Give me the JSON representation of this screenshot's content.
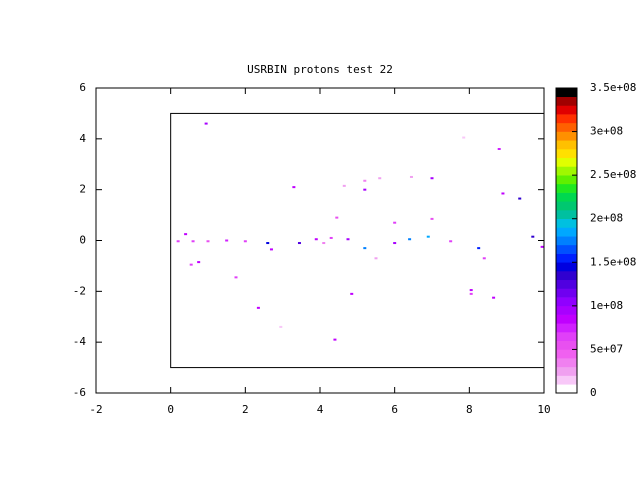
{
  "chart_data": {
    "type": "heatmap",
    "title": "USRBIN protons test 22",
    "xlim": [
      -2,
      10
    ],
    "ylim": [
      -6,
      6
    ],
    "xticks": [
      -2,
      0,
      2,
      4,
      6,
      8,
      10
    ],
    "yticks": [
      -6,
      -4,
      -2,
      0,
      2,
      4,
      6
    ],
    "box": {
      "xlim": [
        0,
        10
      ],
      "ylim": [
        -5,
        5
      ]
    },
    "zlim": [
      0,
      350000000
    ],
    "zticks": [
      0,
      {
        "value": 50000000,
        "label": "5e+07"
      },
      {
        "value": 100000000,
        "label": "1e+08"
      },
      {
        "value": 150000000,
        "label": "1.5e+08"
      },
      {
        "value": 200000000,
        "label": "2e+08"
      },
      {
        "value": 250000000,
        "label": "2.5e+08"
      },
      {
        "value": 300000000,
        "label": "3e+08"
      },
      {
        "value": 350000000,
        "label": "3.5e+08"
      }
    ],
    "palette": [
      "#ffffff",
      "#f8c8f8",
      "#f0a0f0",
      "#f080f0",
      "#f060f0",
      "#e850f0",
      "#e040f8",
      "#d020ff",
      "#c000ff",
      "#a800ff",
      "#9000ff",
      "#7000f0",
      "#5000e0",
      "#3000d0",
      "#0000e0",
      "#0020ff",
      "#0050ff",
      "#0080ff",
      "#00a8ff",
      "#00c0e0",
      "#00c0a0",
      "#00c870",
      "#00d850",
      "#20e820",
      "#60f000",
      "#a0f800",
      "#e0ff00",
      "#ffe000",
      "#ffc000",
      "#ff9000",
      "#ff6000",
      "#ff3000",
      "#e00000",
      "#a00000",
      "#000000"
    ],
    "points": [
      {
        "x": 0.95,
        "y": 4.6,
        "z": 90000000
      },
      {
        "x": 3.3,
        "y": 2.1,
        "z": 80000000
      },
      {
        "x": 4.4,
        "y": -3.9,
        "z": 80000000
      },
      {
        "x": 2.35,
        "y": -2.65,
        "z": 80000000
      },
      {
        "x": 4.85,
        "y": -2.1,
        "z": 80000000
      },
      {
        "x": 8.8,
        "y": 3.6,
        "z": 70000000
      },
      {
        "x": 8.05,
        "y": -1.95,
        "z": 80000000
      },
      {
        "x": 8.05,
        "y": -2.1,
        "z": 60000000
      },
      {
        "x": 8.65,
        "y": -2.25,
        "z": 80000000
      },
      {
        "x": 9.35,
        "y": 1.65,
        "z": 130000000
      },
      {
        "x": 8.9,
        "y": 1.85,
        "z": 80000000
      },
      {
        "x": 1.75,
        "y": -1.45,
        "z": 60000000
      },
      {
        "x": 0.75,
        "y": -0.85,
        "z": 80000000
      },
      {
        "x": 0.55,
        "y": -0.95,
        "z": 60000000
      },
      {
        "x": 6.0,
        "y": 0.7,
        "z": 60000000
      },
      {
        "x": 7.0,
        "y": 2.45,
        "z": 90000000
      },
      {
        "x": 7.0,
        "y": 0.85,
        "z": 50000000
      },
      {
        "x": 6.45,
        "y": 2.5,
        "z": 20000000
      },
      {
        "x": 5.6,
        "y": 2.45,
        "z": 20000000
      },
      {
        "x": 5.2,
        "y": 2.0,
        "z": 90000000
      },
      {
        "x": 5.2,
        "y": 2.35,
        "z": 30000000
      },
      {
        "x": 4.65,
        "y": 2.15,
        "z": 20000000
      },
      {
        "x": 7.85,
        "y": 4.05,
        "z": 10000000
      },
      {
        "x": 2.95,
        "y": -3.4,
        "z": 10000000
      },
      {
        "x": 4.45,
        "y": 0.9,
        "z": 50000000
      },
      {
        "x": 0.4,
        "y": 0.25,
        "z": 80000000
      },
      {
        "x": 2.7,
        "y": -0.35,
        "z": 80000000
      },
      {
        "x": 0.2,
        "y": -0.03,
        "z": 60000000
      },
      {
        "x": 0.6,
        "y": -0.03,
        "z": 60000000
      },
      {
        "x": 1.0,
        "y": -0.03,
        "z": 50000000
      },
      {
        "x": 1.5,
        "y": 0.0,
        "z": 70000000
      },
      {
        "x": 2.0,
        "y": -0.03,
        "z": 60000000
      },
      {
        "x": 2.6,
        "y": -0.1,
        "z": 140000000
      },
      {
        "x": 3.45,
        "y": -0.1,
        "z": 120000000
      },
      {
        "x": 3.9,
        "y": 0.05,
        "z": 80000000
      },
      {
        "x": 4.3,
        "y": 0.1,
        "z": 60000000
      },
      {
        "x": 4.75,
        "y": 0.05,
        "z": 90000000
      },
      {
        "x": 5.2,
        "y": -0.3,
        "z": 170000000
      },
      {
        "x": 6.4,
        "y": 0.05,
        "z": 170000000
      },
      {
        "x": 6.9,
        "y": 0.15,
        "z": 180000000
      },
      {
        "x": 7.5,
        "y": -0.03,
        "z": 60000000
      },
      {
        "x": 8.25,
        "y": -0.3,
        "z": 150000000
      },
      {
        "x": 8.4,
        "y": -0.7,
        "z": 60000000
      },
      {
        "x": 9.7,
        "y": 0.15,
        "z": 130000000
      },
      {
        "x": 9.95,
        "y": -0.25,
        "z": 80000000
      },
      {
        "x": 6.0,
        "y": -0.1,
        "z": 90000000
      },
      {
        "x": 5.5,
        "y": -0.7,
        "z": 20000000
      },
      {
        "x": 4.1,
        "y": -0.1,
        "z": 30000000
      }
    ]
  }
}
